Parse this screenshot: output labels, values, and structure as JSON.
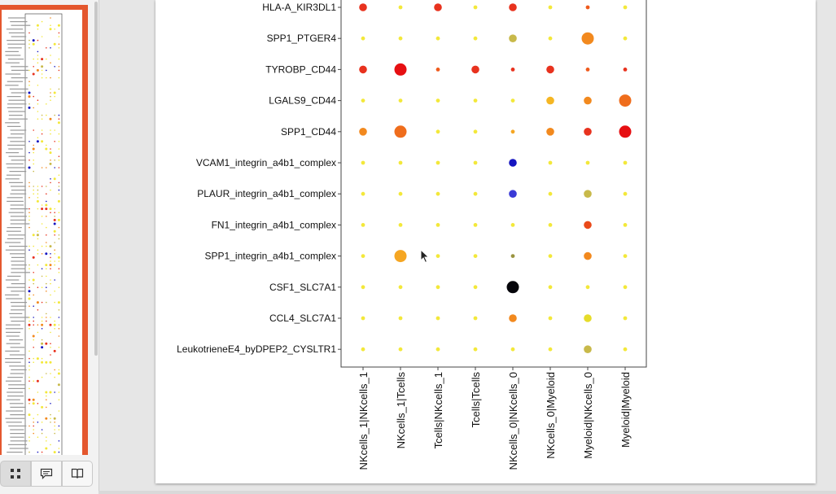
{
  "viewer": {
    "toolbar": {
      "thumbnails_icon": "grid-icon",
      "outline_icon": "comment-icon",
      "attachments_icon": "book-icon",
      "active": "thumbnails"
    }
  },
  "chart_data": {
    "type": "scatter",
    "subtype": "dot-plot",
    "xlabel": "",
    "ylabel": "",
    "categories_x": [
      "NKcells_1|NKcells_1",
      "NKcells_1|Tcells",
      "Tcells|NKcells_1",
      "Tcells|Tcells",
      "NKcells_0|NKcells_0",
      "NKcells_0|Myeloid",
      "Myeloid|NKcells_0",
      "Myeloid|Myeloid"
    ],
    "categories_y": [
      "HLA-A_KIR3DL1",
      "SPP1_PTGER4",
      "TYROBP_CD44",
      "LGALS9_CD44",
      "SPP1_CD44",
      "VCAM1_integrin_a4b1_complex",
      "PLAUR_integrin_a4b1_complex",
      "FN1_integrin_a4b1_complex",
      "SPP1_integrin_a4b1_complex",
      "CSF1_SLC7A1",
      "CCL4_SLC7A1",
      "LeukotrieneE4_byDPEP2_CYSLTR1"
    ],
    "points": [
      {
        "x": "NKcells_1|NKcells_1",
        "y": "HLA-A_KIR3DL1",
        "size": 2,
        "color": "#e8321e"
      },
      {
        "x": "NKcells_1|Tcells",
        "y": "HLA-A_KIR3DL1",
        "size": 1,
        "color": "#f3e83a"
      },
      {
        "x": "Tcells|NKcells_1",
        "y": "HLA-A_KIR3DL1",
        "size": 2,
        "color": "#e8321e"
      },
      {
        "x": "Tcells|Tcells",
        "y": "HLA-A_KIR3DL1",
        "size": 1,
        "color": "#f3e83a"
      },
      {
        "x": "NKcells_0|NKcells_0",
        "y": "HLA-A_KIR3DL1",
        "size": 2,
        "color": "#e8321e"
      },
      {
        "x": "NKcells_0|Myeloid",
        "y": "HLA-A_KIR3DL1",
        "size": 1,
        "color": "#f3e83a"
      },
      {
        "x": "Myeloid|NKcells_0",
        "y": "HLA-A_KIR3DL1",
        "size": 1,
        "color": "#ef5a1c"
      },
      {
        "x": "Myeloid|Myeloid",
        "y": "HLA-A_KIR3DL1",
        "size": 1,
        "color": "#f3e83a"
      },
      {
        "x": "NKcells_1|NKcells_1",
        "y": "SPP1_PTGER4",
        "size": 1,
        "color": "#f3e83a"
      },
      {
        "x": "NKcells_1|Tcells",
        "y": "SPP1_PTGER4",
        "size": 1,
        "color": "#f3e83a"
      },
      {
        "x": "Tcells|NKcells_1",
        "y": "SPP1_PTGER4",
        "size": 1,
        "color": "#f3e83a"
      },
      {
        "x": "Tcells|Tcells",
        "y": "SPP1_PTGER4",
        "size": 1,
        "color": "#f3e83a"
      },
      {
        "x": "NKcells_0|NKcells_0",
        "y": "SPP1_PTGER4",
        "size": 2,
        "color": "#c8b94a"
      },
      {
        "x": "NKcells_0|Myeloid",
        "y": "SPP1_PTGER4",
        "size": 1,
        "color": "#f3e83a"
      },
      {
        "x": "Myeloid|NKcells_0",
        "y": "SPP1_PTGER4",
        "size": 3,
        "color": "#f2891e"
      },
      {
        "x": "Myeloid|Myeloid",
        "y": "SPP1_PTGER4",
        "size": 1,
        "color": "#f3e83a"
      },
      {
        "x": "NKcells_1|NKcells_1",
        "y": "TYROBP_CD44",
        "size": 2,
        "color": "#e8321e"
      },
      {
        "x": "NKcells_1|Tcells",
        "y": "TYROBP_CD44",
        "size": 3,
        "color": "#e60f12"
      },
      {
        "x": "Tcells|NKcells_1",
        "y": "TYROBP_CD44",
        "size": 1,
        "color": "#ef5a1c"
      },
      {
        "x": "Tcells|Tcells",
        "y": "TYROBP_CD44",
        "size": 2,
        "color": "#e8321e"
      },
      {
        "x": "NKcells_0|NKcells_0",
        "y": "TYROBP_CD44",
        "size": 1,
        "color": "#e8321e"
      },
      {
        "x": "NKcells_0|Myeloid",
        "y": "TYROBP_CD44",
        "size": 2,
        "color": "#e8321e"
      },
      {
        "x": "Myeloid|NKcells_0",
        "y": "TYROBP_CD44",
        "size": 1,
        "color": "#ef5a1c"
      },
      {
        "x": "Myeloid|Myeloid",
        "y": "TYROBP_CD44",
        "size": 1,
        "color": "#e8321e"
      },
      {
        "x": "NKcells_1|NKcells_1",
        "y": "LGALS9_CD44",
        "size": 1,
        "color": "#f3e83a"
      },
      {
        "x": "NKcells_1|Tcells",
        "y": "LGALS9_CD44",
        "size": 1,
        "color": "#f3e83a"
      },
      {
        "x": "Tcells|NKcells_1",
        "y": "LGALS9_CD44",
        "size": 1,
        "color": "#f3e83a"
      },
      {
        "x": "Tcells|Tcells",
        "y": "LGALS9_CD44",
        "size": 1,
        "color": "#f3e83a"
      },
      {
        "x": "NKcells_0|NKcells_0",
        "y": "LGALS9_CD44",
        "size": 1,
        "color": "#f3e83a"
      },
      {
        "x": "NKcells_0|Myeloid",
        "y": "LGALS9_CD44",
        "size": 2,
        "color": "#f5b623"
      },
      {
        "x": "Myeloid|NKcells_0",
        "y": "LGALS9_CD44",
        "size": 2,
        "color": "#f2891e"
      },
      {
        "x": "Myeloid|Myeloid",
        "y": "LGALS9_CD44",
        "size": 3,
        "color": "#ef6d1c"
      },
      {
        "x": "NKcells_1|NKcells_1",
        "y": "SPP1_CD44",
        "size": 2,
        "color": "#f2891e"
      },
      {
        "x": "NKcells_1|Tcells",
        "y": "SPP1_CD44",
        "size": 3,
        "color": "#ef6d1c"
      },
      {
        "x": "Tcells|NKcells_1",
        "y": "SPP1_CD44",
        "size": 1,
        "color": "#f3e83a"
      },
      {
        "x": "Tcells|Tcells",
        "y": "SPP1_CD44",
        "size": 1,
        "color": "#f3e83a"
      },
      {
        "x": "NKcells_0|NKcells_0",
        "y": "SPP1_CD44",
        "size": 1,
        "color": "#f5a623"
      },
      {
        "x": "NKcells_0|Myeloid",
        "y": "SPP1_CD44",
        "size": 2,
        "color": "#f2891e"
      },
      {
        "x": "Myeloid|NKcells_0",
        "y": "SPP1_CD44",
        "size": 2,
        "color": "#e8321e"
      },
      {
        "x": "Myeloid|Myeloid",
        "y": "SPP1_CD44",
        "size": 3,
        "color": "#e60f12"
      },
      {
        "x": "NKcells_1|NKcells_1",
        "y": "VCAM1_integrin_a4b1_complex",
        "size": 1,
        "color": "#f3e83a"
      },
      {
        "x": "NKcells_1|Tcells",
        "y": "VCAM1_integrin_a4b1_complex",
        "size": 1,
        "color": "#f3e83a"
      },
      {
        "x": "Tcells|NKcells_1",
        "y": "VCAM1_integrin_a4b1_complex",
        "size": 1,
        "color": "#f3e83a"
      },
      {
        "x": "Tcells|Tcells",
        "y": "VCAM1_integrin_a4b1_complex",
        "size": 1,
        "color": "#f3e83a"
      },
      {
        "x": "NKcells_0|NKcells_0",
        "y": "VCAM1_integrin_a4b1_complex",
        "size": 2,
        "color": "#1515c0"
      },
      {
        "x": "NKcells_0|Myeloid",
        "y": "VCAM1_integrin_a4b1_complex",
        "size": 1,
        "color": "#f3e83a"
      },
      {
        "x": "Myeloid|NKcells_0",
        "y": "VCAM1_integrin_a4b1_complex",
        "size": 1,
        "color": "#f3e83a"
      },
      {
        "x": "Myeloid|Myeloid",
        "y": "VCAM1_integrin_a4b1_complex",
        "size": 1,
        "color": "#f3e83a"
      },
      {
        "x": "NKcells_1|NKcells_1",
        "y": "PLAUR_integrin_a4b1_complex",
        "size": 1,
        "color": "#f3e83a"
      },
      {
        "x": "NKcells_1|Tcells",
        "y": "PLAUR_integrin_a4b1_complex",
        "size": 1,
        "color": "#f3e83a"
      },
      {
        "x": "Tcells|NKcells_1",
        "y": "PLAUR_integrin_a4b1_complex",
        "size": 1,
        "color": "#f3e83a"
      },
      {
        "x": "Tcells|Tcells",
        "y": "PLAUR_integrin_a4b1_complex",
        "size": 1,
        "color": "#f3e83a"
      },
      {
        "x": "NKcells_0|NKcells_0",
        "y": "PLAUR_integrin_a4b1_complex",
        "size": 2,
        "color": "#3a3ad6"
      },
      {
        "x": "NKcells_0|Myeloid",
        "y": "PLAUR_integrin_a4b1_complex",
        "size": 1,
        "color": "#f3e83a"
      },
      {
        "x": "Myeloid|NKcells_0",
        "y": "PLAUR_integrin_a4b1_complex",
        "size": 2,
        "color": "#c8b94a"
      },
      {
        "x": "Myeloid|Myeloid",
        "y": "PLAUR_integrin_a4b1_complex",
        "size": 1,
        "color": "#f3e83a"
      },
      {
        "x": "NKcells_1|NKcells_1",
        "y": "FN1_integrin_a4b1_complex",
        "size": 1,
        "color": "#f3e83a"
      },
      {
        "x": "NKcells_1|Tcells",
        "y": "FN1_integrin_a4b1_complex",
        "size": 1,
        "color": "#f3e83a"
      },
      {
        "x": "Tcells|NKcells_1",
        "y": "FN1_integrin_a4b1_complex",
        "size": 1,
        "color": "#f3e83a"
      },
      {
        "x": "Tcells|Tcells",
        "y": "FN1_integrin_a4b1_complex",
        "size": 1,
        "color": "#f3e83a"
      },
      {
        "x": "NKcells_0|NKcells_0",
        "y": "FN1_integrin_a4b1_complex",
        "size": 1,
        "color": "#f3e83a"
      },
      {
        "x": "NKcells_0|Myeloid",
        "y": "FN1_integrin_a4b1_complex",
        "size": 1,
        "color": "#f3e83a"
      },
      {
        "x": "Myeloid|NKcells_0",
        "y": "FN1_integrin_a4b1_complex",
        "size": 2,
        "color": "#ea4a1a"
      },
      {
        "x": "Myeloid|Myeloid",
        "y": "FN1_integrin_a4b1_complex",
        "size": 1,
        "color": "#f3e83a"
      },
      {
        "x": "NKcells_1|NKcells_1",
        "y": "SPP1_integrin_a4b1_complex",
        "size": 1,
        "color": "#f3e83a"
      },
      {
        "x": "NKcells_1|Tcells",
        "y": "SPP1_integrin_a4b1_complex",
        "size": 3,
        "color": "#f5a623"
      },
      {
        "x": "Tcells|NKcells_1",
        "y": "SPP1_integrin_a4b1_complex",
        "size": 1,
        "color": "#f3e83a"
      },
      {
        "x": "Tcells|Tcells",
        "y": "SPP1_integrin_a4b1_complex",
        "size": 1,
        "color": "#f3e83a"
      },
      {
        "x": "NKcells_0|NKcells_0",
        "y": "SPP1_integrin_a4b1_complex",
        "size": 1,
        "color": "#9a9440"
      },
      {
        "x": "NKcells_0|Myeloid",
        "y": "SPP1_integrin_a4b1_complex",
        "size": 1,
        "color": "#f3e83a"
      },
      {
        "x": "Myeloid|NKcells_0",
        "y": "SPP1_integrin_a4b1_complex",
        "size": 2,
        "color": "#f2891e"
      },
      {
        "x": "Myeloid|Myeloid",
        "y": "SPP1_integrin_a4b1_complex",
        "size": 1,
        "color": "#f3e83a"
      },
      {
        "x": "NKcells_1|NKcells_1",
        "y": "CSF1_SLC7A1",
        "size": 1,
        "color": "#f3e83a"
      },
      {
        "x": "NKcells_1|Tcells",
        "y": "CSF1_SLC7A1",
        "size": 1,
        "color": "#f3e83a"
      },
      {
        "x": "Tcells|NKcells_1",
        "y": "CSF1_SLC7A1",
        "size": 1,
        "color": "#f3e83a"
      },
      {
        "x": "Tcells|Tcells",
        "y": "CSF1_SLC7A1",
        "size": 1,
        "color": "#f3e83a"
      },
      {
        "x": "NKcells_0|NKcells_0",
        "y": "CSF1_SLC7A1",
        "size": 3,
        "color": "#05050a"
      },
      {
        "x": "NKcells_0|Myeloid",
        "y": "CSF1_SLC7A1",
        "size": 1,
        "color": "#f3e83a"
      },
      {
        "x": "Myeloid|NKcells_0",
        "y": "CSF1_SLC7A1",
        "size": 1,
        "color": "#f3e83a"
      },
      {
        "x": "Myeloid|Myeloid",
        "y": "CSF1_SLC7A1",
        "size": 1,
        "color": "#f3e83a"
      },
      {
        "x": "NKcells_1|NKcells_1",
        "y": "CCL4_SLC7A1",
        "size": 1,
        "color": "#f3e83a"
      },
      {
        "x": "NKcells_1|Tcells",
        "y": "CCL4_SLC7A1",
        "size": 1,
        "color": "#f3e83a"
      },
      {
        "x": "Tcells|NKcells_1",
        "y": "CCL4_SLC7A1",
        "size": 1,
        "color": "#f3e83a"
      },
      {
        "x": "Tcells|Tcells",
        "y": "CCL4_SLC7A1",
        "size": 1,
        "color": "#f3e83a"
      },
      {
        "x": "NKcells_0|NKcells_0",
        "y": "CCL4_SLC7A1",
        "size": 2,
        "color": "#f2891e"
      },
      {
        "x": "NKcells_0|Myeloid",
        "y": "CCL4_SLC7A1",
        "size": 1,
        "color": "#f3e83a"
      },
      {
        "x": "Myeloid|NKcells_0",
        "y": "CCL4_SLC7A1",
        "size": 2,
        "color": "#e6dc2a"
      },
      {
        "x": "Myeloid|Myeloid",
        "y": "CCL4_SLC7A1",
        "size": 1,
        "color": "#f3e83a"
      },
      {
        "x": "NKcells_1|NKcells_1",
        "y": "LeukotrieneE4_byDPEP2_CYSLTR1",
        "size": 1,
        "color": "#f3e83a"
      },
      {
        "x": "NKcells_1|Tcells",
        "y": "LeukotrieneE4_byDPEP2_CYSLTR1",
        "size": 1,
        "color": "#f3e83a"
      },
      {
        "x": "Tcells|NKcells_1",
        "y": "LeukotrieneE4_byDPEP2_CYSLTR1",
        "size": 1,
        "color": "#f3e83a"
      },
      {
        "x": "Tcells|Tcells",
        "y": "LeukotrieneE4_byDPEP2_CYSLTR1",
        "size": 1,
        "color": "#f3e83a"
      },
      {
        "x": "NKcells_0|NKcells_0",
        "y": "LeukotrieneE4_byDPEP2_CYSLTR1",
        "size": 1,
        "color": "#f3e83a"
      },
      {
        "x": "NKcells_0|Myeloid",
        "y": "LeukotrieneE4_byDPEP2_CYSLTR1",
        "size": 1,
        "color": "#f3e83a"
      },
      {
        "x": "Myeloid|NKcells_0",
        "y": "LeukotrieneE4_byDPEP2_CYSLTR1",
        "size": 2,
        "color": "#c8b94a"
      },
      {
        "x": "Myeloid|Myeloid",
        "y": "LeukotrieneE4_byDPEP2_CYSLTR1",
        "size": 1,
        "color": "#f3e83a"
      }
    ]
  }
}
